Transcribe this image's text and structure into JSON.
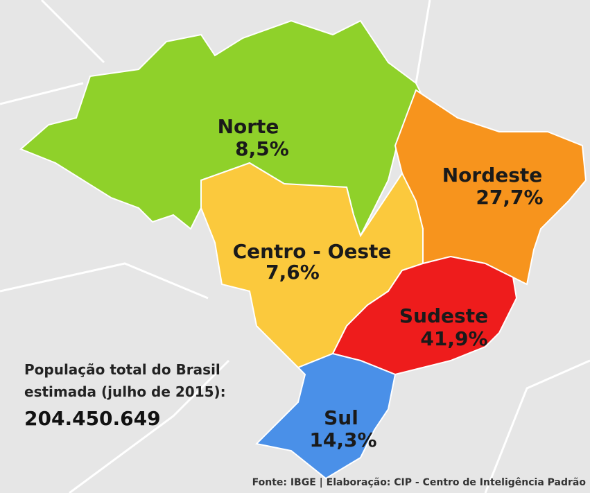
{
  "regions": [
    {
      "name": "Norte",
      "share": "8,5%"
    },
    {
      "name": "Nordeste",
      "share": "27,7%"
    },
    {
      "name": "Centro - Oeste",
      "share": "7,6%"
    },
    {
      "name": "Sudeste",
      "share": "41,9%"
    },
    {
      "name": "Sul",
      "share": "14,3%"
    }
  ],
  "caption": {
    "line1": "População total do Brasil",
    "line2": "estimada (julho de 2015):",
    "total": "204.450.649"
  },
  "source": "Fonte: IBGE | Elaboração: CIP - Centro de Inteligência Padrão"
}
